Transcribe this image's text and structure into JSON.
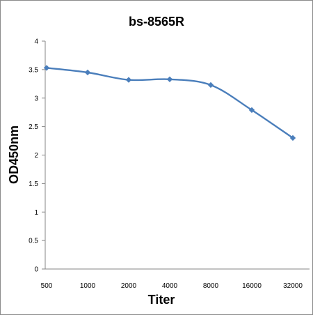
{
  "chart_data": {
    "type": "line",
    "title": "bs-8565R",
    "xlabel": "Titer",
    "ylabel": "OD450nm",
    "categories": [
      "500",
      "1000",
      "2000",
      "4000",
      "8000",
      "16000",
      "32000"
    ],
    "series": [
      {
        "values": [
          3.53,
          3.45,
          3.32,
          3.33,
          3.23,
          2.79,
          2.3
        ]
      }
    ],
    "y_ticks": [
      "0",
      "0.5",
      "1",
      "1.5",
      "2",
      "2.5",
      "3",
      "3.5",
      "4"
    ],
    "ylim": [
      0,
      4
    ],
    "grid": false,
    "legend": "none",
    "colors": {
      "series": "#4a7ebb",
      "axis": "#868686",
      "text": "#000000"
    }
  }
}
